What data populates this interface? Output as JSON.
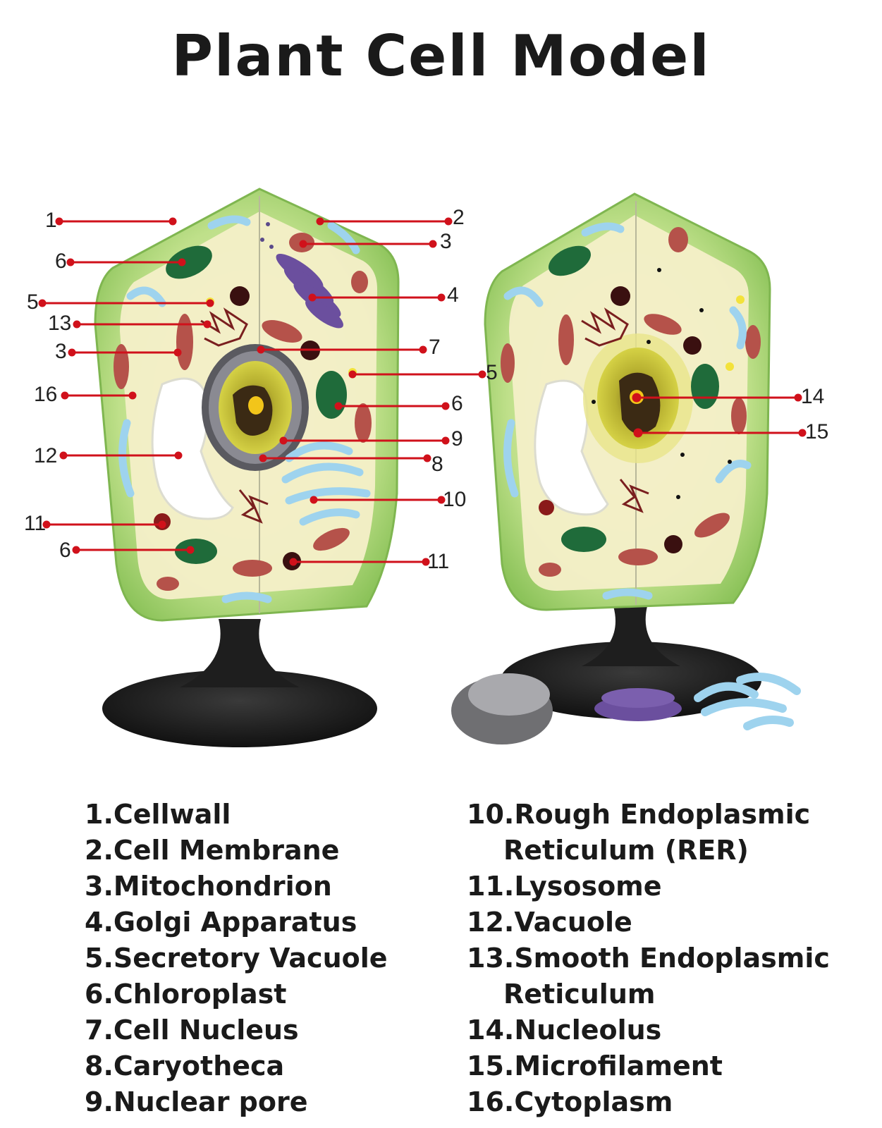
{
  "title": "Plant Cell Model",
  "callouts": {
    "c1": "1",
    "c2": "2",
    "c3a": "3",
    "c3b": "3",
    "c4": "4",
    "c5a": "5",
    "c5b": "5",
    "c6a": "6",
    "c6b": "6",
    "c6c": "6",
    "c7": "7",
    "c8": "8",
    "c9": "9",
    "c10": "10",
    "c11a": "11",
    "c11b": "11",
    "c12": "12",
    "c13": "13",
    "c14": "14",
    "c15": "15",
    "c16": "16"
  },
  "legend_left": [
    "1.Cellwall",
    "2.Cell Membrane",
    "3.Mitochondrion",
    "4.Golgi Apparatus",
    "5.Secretory Vacuole",
    "6.Chloroplast",
    "7.Cell Nucleus",
    "8.Caryotheca",
    "9.Nuclear pore"
  ],
  "legend_right": [
    {
      "main": "10.Rough Endoplasmic",
      "cont": "Reticulum (RER)"
    },
    {
      "main": "11.Lysosome"
    },
    {
      "main": "12.Vacuole"
    },
    {
      "main": "13.Smooth Endoplasmic",
      "cont": "Reticulum"
    },
    {
      "main": "14.Nucleolus"
    },
    {
      "main": "15.Microfilament"
    },
    {
      "main": "16.Cytoplasm"
    }
  ],
  "colors": {
    "leader": "#d0111b",
    "cell_wall": "#9fcf6a",
    "cytoplasm": "#f4efc8",
    "chloroplast": "#1f6b3a",
    "mitochondrion": "#b5524a",
    "golgi": "#6b4f9e",
    "er": "#9ed3ee",
    "nucleus_envelope": "#6c6c70",
    "nucleus_inner": "#c9c43a",
    "stand": "#2a2a2a"
  }
}
